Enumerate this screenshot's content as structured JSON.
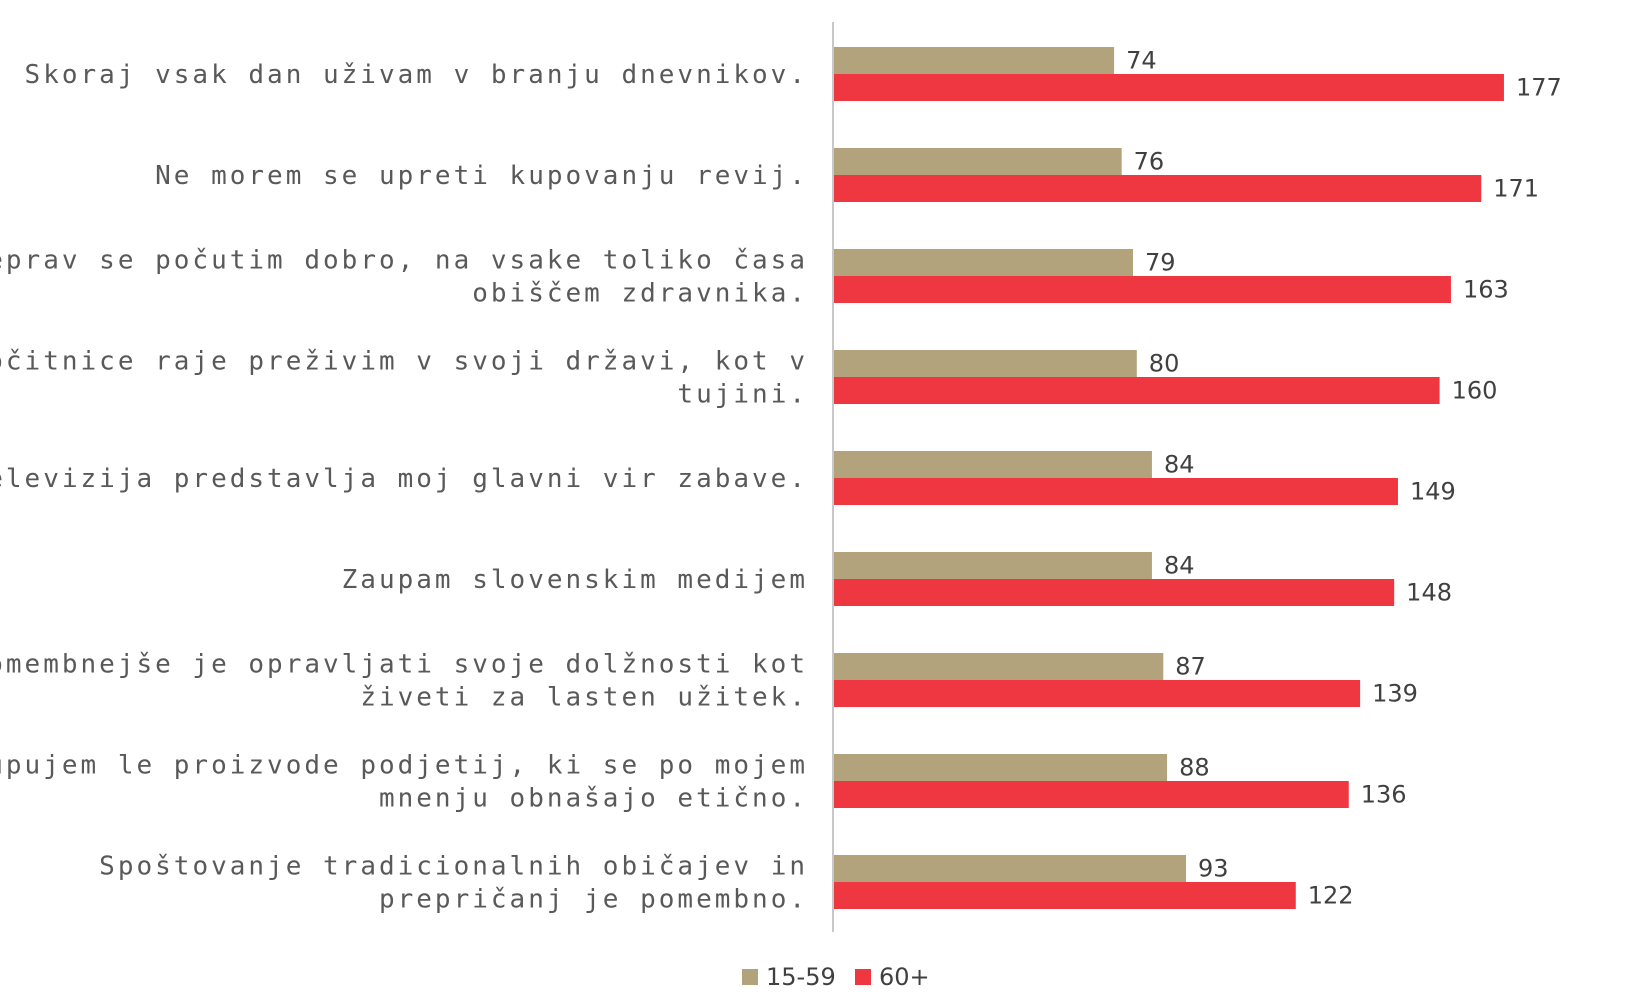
{
  "chart_data": {
    "type": "bar",
    "orientation": "horizontal",
    "categories": [
      [
        "Skoraj vsak dan uživam v branju dnevnikov."
      ],
      [
        "Ne morem se upreti kupovanju revij."
      ],
      [
        "Čeprav se počutim dobro, na vsake toliko časa",
        "obiščem zdravnika."
      ],
      [
        "Počitnice raje preživim v svoji državi, kot v",
        "tujini."
      ],
      [
        "Televizija predstavlja moj glavni vir zabave."
      ],
      [
        "Zaupam slovenskim medijem"
      ],
      [
        "Pomembnejše je opravljati svoje dolžnosti kot",
        "živeti za lasten užitek."
      ],
      [
        "Kupujem le proizvode podjetij, ki se po mojem",
        "mnenju obnašajo etično."
      ],
      [
        "Spoštovanje tradicionalnih običajev in",
        "prepričanj je pomembno."
      ]
    ],
    "series": [
      {
        "name": "15-59",
        "color": "#b2a37c",
        "values": [
          74,
          76,
          79,
          80,
          84,
          84,
          87,
          88,
          93
        ]
      },
      {
        "name": "60+",
        "color": "#ee3740",
        "values": [
          177,
          171,
          163,
          160,
          149,
          148,
          139,
          136,
          122
        ]
      }
    ],
    "xlim": [
      0,
      200
    ],
    "grid": false,
    "legend_position": "bottom",
    "title": "",
    "xlabel": "",
    "ylabel": ""
  }
}
